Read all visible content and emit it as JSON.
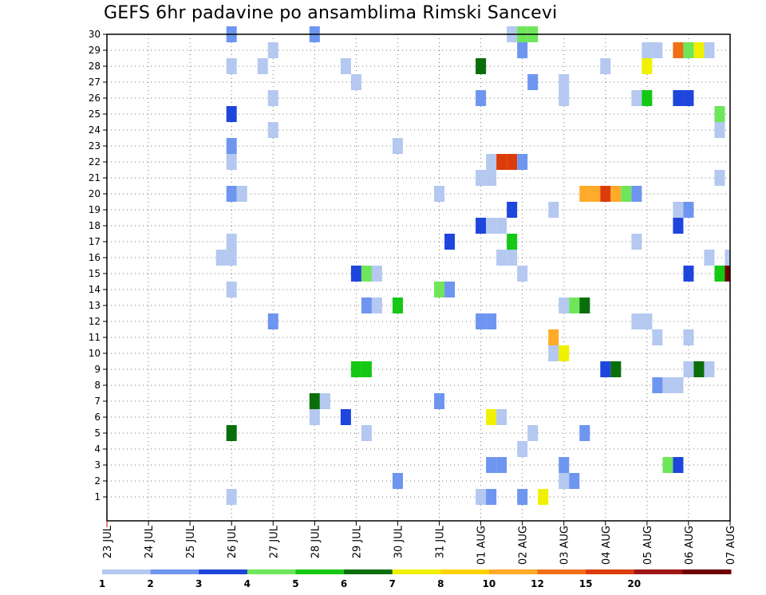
{
  "chart_data": {
    "type": "heatmap",
    "title": "GEFS 6hr padavine po ansamblima Rimski Sancevi",
    "xlabel": "",
    "ylabel": "",
    "x_start_label": "23 JUL",
    "x_tick_labels": [
      "23 JUL",
      "24 JUL",
      "25 JUL",
      "26 JUL",
      "27 JUL",
      "28 JUL",
      "29 JUL",
      "30 JUL",
      "31 JUL",
      "01 AUG",
      "02 AUG",
      "03 AUG",
      "04 AUG",
      "05 AUG",
      "06 AUG",
      "07 AUG"
    ],
    "x_step_hours": 6,
    "x_steps_total": 60,
    "y_members": [
      1,
      2,
      3,
      4,
      5,
      6,
      7,
      8,
      9,
      10,
      11,
      12,
      13,
      14,
      15,
      16,
      17,
      18,
      19,
      20,
      21,
      22,
      23,
      24,
      25,
      26,
      27,
      28,
      29,
      30
    ],
    "grid": true,
    "legend_position": "bottom",
    "legend": {
      "levels": [
        "1",
        "2",
        "3",
        "4",
        "5",
        "6",
        "7",
        "8",
        "10",
        "12",
        "15",
        "20"
      ],
      "colors": [
        "#b4c8f0",
        "#6e96f0",
        "#1e46dc",
        "#6ee65a",
        "#14c814",
        "#0a6e0a",
        "#f0f000",
        "#ffd200",
        "#ffaa28",
        "#f06e14",
        "#dc3c0a",
        "#a01414",
        "#6e0000"
      ]
    },
    "cells": [
      {
        "m": 30,
        "t": 12,
        "c": 1
      },
      {
        "m": 30,
        "t": 20,
        "c": 1
      },
      {
        "m": 30,
        "t": 39,
        "c": 0
      },
      {
        "m": 30,
        "t": 40,
        "c": 3
      },
      {
        "m": 30,
        "t": 41,
        "c": 3
      },
      {
        "m": 29,
        "t": 16,
        "c": 0
      },
      {
        "m": 29,
        "t": 40,
        "c": 1
      },
      {
        "m": 29,
        "t": 52,
        "c": 0
      },
      {
        "m": 29,
        "t": 53,
        "c": 0
      },
      {
        "m": 29,
        "t": 55,
        "c": 9
      },
      {
        "m": 29,
        "t": 56,
        "c": 3
      },
      {
        "m": 29,
        "t": 57,
        "c": 6
      },
      {
        "m": 29,
        "t": 58,
        "c": 0
      },
      {
        "m": 28,
        "t": 12,
        "c": 0
      },
      {
        "m": 28,
        "t": 15,
        "c": 0
      },
      {
        "m": 28,
        "t": 23,
        "c": 0
      },
      {
        "m": 28,
        "t": 36,
        "c": 5
      },
      {
        "m": 28,
        "t": 48,
        "c": 0
      },
      {
        "m": 28,
        "t": 52,
        "c": 6
      },
      {
        "m": 27,
        "t": 24,
        "c": 0
      },
      {
        "m": 27,
        "t": 41,
        "c": 1
      },
      {
        "m": 27,
        "t": 44,
        "c": 0
      },
      {
        "m": 26,
        "t": 16,
        "c": 0
      },
      {
        "m": 26,
        "t": 36,
        "c": 1
      },
      {
        "m": 26,
        "t": 44,
        "c": 0
      },
      {
        "m": 26,
        "t": 51,
        "c": 0
      },
      {
        "m": 26,
        "t": 52,
        "c": 4
      },
      {
        "m": 26,
        "t": 55,
        "c": 2
      },
      {
        "m": 26,
        "t": 56,
        "c": 2
      },
      {
        "m": 25,
        "t": 12,
        "c": 2
      },
      {
        "m": 25,
        "t": 59,
        "c": 3
      },
      {
        "m": 24,
        "t": 16,
        "c": 0
      },
      {
        "m": 24,
        "t": 59,
        "c": 0
      },
      {
        "m": 23,
        "t": 12,
        "c": 1
      },
      {
        "m": 23,
        "t": 28,
        "c": 0
      },
      {
        "m": 22,
        "t": 12,
        "c": 0
      },
      {
        "m": 22,
        "t": 37,
        "c": 0
      },
      {
        "m": 22,
        "t": 38,
        "c": 10
      },
      {
        "m": 22,
        "t": 39,
        "c": 10
      },
      {
        "m": 22,
        "t": 40,
        "c": 1
      },
      {
        "m": 21,
        "t": 36,
        "c": 0
      },
      {
        "m": 21,
        "t": 37,
        "c": 0
      },
      {
        "m": 21,
        "t": 59,
        "c": 0
      },
      {
        "m": 20,
        "t": 12,
        "c": 1
      },
      {
        "m": 20,
        "t": 13,
        "c": 0
      },
      {
        "m": 20,
        "t": 32,
        "c": 0
      },
      {
        "m": 20,
        "t": 46,
        "c": 8
      },
      {
        "m": 20,
        "t": 47,
        "c": 8
      },
      {
        "m": 20,
        "t": 48,
        "c": 10
      },
      {
        "m": 20,
        "t": 49,
        "c": 8
      },
      {
        "m": 20,
        "t": 50,
        "c": 3
      },
      {
        "m": 20,
        "t": 51,
        "c": 1
      },
      {
        "m": 19,
        "t": 39,
        "c": 2
      },
      {
        "m": 19,
        "t": 43,
        "c": 0
      },
      {
        "m": 19,
        "t": 55,
        "c": 0
      },
      {
        "m": 19,
        "t": 56,
        "c": 1
      },
      {
        "m": 18,
        "t": 36,
        "c": 2
      },
      {
        "m": 18,
        "t": 37,
        "c": 0
      },
      {
        "m": 18,
        "t": 38,
        "c": 0
      },
      {
        "m": 18,
        "t": 55,
        "c": 2
      },
      {
        "m": 17,
        "t": 12,
        "c": 0
      },
      {
        "m": 17,
        "t": 33,
        "c": 2
      },
      {
        "m": 17,
        "t": 39,
        "c": 4
      },
      {
        "m": 17,
        "t": 51,
        "c": 0
      },
      {
        "m": 16,
        "t": 11,
        "c": 0
      },
      {
        "m": 16,
        "t": 12,
        "c": 0
      },
      {
        "m": 16,
        "t": 38,
        "c": 0
      },
      {
        "m": 16,
        "t": 39,
        "c": 0
      },
      {
        "m": 16,
        "t": 58,
        "c": 0
      },
      {
        "m": 16,
        "t": 60,
        "c": 0
      },
      {
        "m": 15,
        "t": 24,
        "c": 2
      },
      {
        "m": 15,
        "t": 25,
        "c": 3
      },
      {
        "m": 15,
        "t": 26,
        "c": 0
      },
      {
        "m": 15,
        "t": 40,
        "c": 0
      },
      {
        "m": 15,
        "t": 56,
        "c": 2
      },
      {
        "m": 15,
        "t": 59,
        "c": 4
      },
      {
        "m": 15,
        "t": 60,
        "c": 12
      },
      {
        "m": 14,
        "t": 12,
        "c": 0
      },
      {
        "m": 14,
        "t": 32,
        "c": 3
      },
      {
        "m": 14,
        "t": 33,
        "c": 1
      },
      {
        "m": 13,
        "t": 25,
        "c": 1
      },
      {
        "m": 13,
        "t": 26,
        "c": 0
      },
      {
        "m": 13,
        "t": 28,
        "c": 4
      },
      {
        "m": 13,
        "t": 44,
        "c": 0
      },
      {
        "m": 13,
        "t": 45,
        "c": 3
      },
      {
        "m": 13,
        "t": 46,
        "c": 5
      },
      {
        "m": 12,
        "t": 16,
        "c": 1
      },
      {
        "m": 12,
        "t": 36,
        "c": 1
      },
      {
        "m": 12,
        "t": 37,
        "c": 1
      },
      {
        "m": 12,
        "t": 51,
        "c": 0
      },
      {
        "m": 12,
        "t": 52,
        "c": 0
      },
      {
        "m": 11,
        "t": 43,
        "c": 8
      },
      {
        "m": 11,
        "t": 53,
        "c": 0
      },
      {
        "m": 11,
        "t": 56,
        "c": 0
      },
      {
        "m": 10,
        "t": 43,
        "c": 0
      },
      {
        "m": 10,
        "t": 44,
        "c": 6
      },
      {
        "m": 9,
        "t": 24,
        "c": 4
      },
      {
        "m": 9,
        "t": 25,
        "c": 4
      },
      {
        "m": 9,
        "t": 48,
        "c": 2
      },
      {
        "m": 9,
        "t": 49,
        "c": 5
      },
      {
        "m": 9,
        "t": 56,
        "c": 0
      },
      {
        "m": 9,
        "t": 57,
        "c": 5
      },
      {
        "m": 9,
        "t": 58,
        "c": 0
      },
      {
        "m": 8,
        "t": 53,
        "c": 1
      },
      {
        "m": 8,
        "t": 54,
        "c": 0
      },
      {
        "m": 8,
        "t": 55,
        "c": 0
      },
      {
        "m": 7,
        "t": 20,
        "c": 5
      },
      {
        "m": 7,
        "t": 21,
        "c": 0
      },
      {
        "m": 7,
        "t": 32,
        "c": 1
      },
      {
        "m": 6,
        "t": 20,
        "c": 0
      },
      {
        "m": 6,
        "t": 23,
        "c": 2
      },
      {
        "m": 6,
        "t": 37,
        "c": 6
      },
      {
        "m": 6,
        "t": 38,
        "c": 0
      },
      {
        "m": 5,
        "t": 12,
        "c": 5
      },
      {
        "m": 5,
        "t": 25,
        "c": 0
      },
      {
        "m": 5,
        "t": 41,
        "c": 0
      },
      {
        "m": 5,
        "t": 46,
        "c": 1
      },
      {
        "m": 4,
        "t": 40,
        "c": 0
      },
      {
        "m": 3,
        "t": 37,
        "c": 1
      },
      {
        "m": 3,
        "t": 38,
        "c": 1
      },
      {
        "m": 3,
        "t": 44,
        "c": 1
      },
      {
        "m": 3,
        "t": 54,
        "c": 3
      },
      {
        "m": 3,
        "t": 55,
        "c": 2
      },
      {
        "m": 2,
        "t": 28,
        "c": 1
      },
      {
        "m": 2,
        "t": 44,
        "c": 0
      },
      {
        "m": 2,
        "t": 45,
        "c": 1
      },
      {
        "m": 1,
        "t": 12,
        "c": 0
      },
      {
        "m": 1,
        "t": 36,
        "c": 0
      },
      {
        "m": 1,
        "t": 37,
        "c": 1
      },
      {
        "m": 1,
        "t": 40,
        "c": 1
      },
      {
        "m": 1,
        "t": 42,
        "c": 6
      }
    ]
  }
}
